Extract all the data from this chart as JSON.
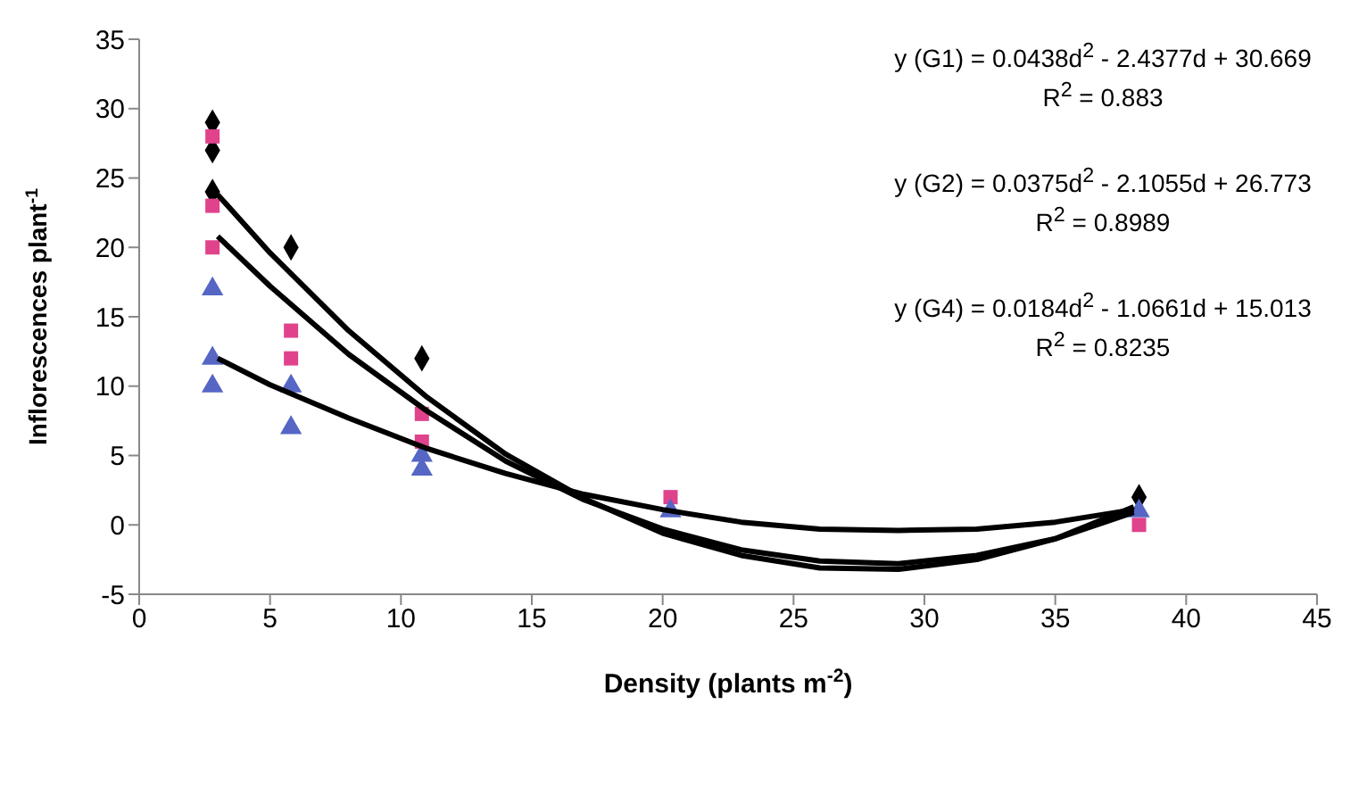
{
  "chart_data": {
    "type": "scatter",
    "xlabel": "Density (plants m$^{-2}$)",
    "ylabel": "Inflorescences plant$^{-1}$",
    "xlim": [
      0,
      45
    ],
    "xticks": [
      0,
      5,
      10,
      15,
      20,
      25,
      30,
      35,
      40,
      45
    ],
    "ylim": [
      -5,
      35
    ],
    "yticks": [
      -5,
      0,
      5,
      10,
      15,
      20,
      25,
      30,
      35
    ],
    "grid": false,
    "legend": false,
    "annotations": [
      "y (G1) = 0.0438d$^{2}$ - 2.4377d + 30.669",
      "R$^{2}$ = 0.883",
      "y (G2) = 0.0375d$^{2}$ - 2.1055d + 26.773",
      "R$^{2}$ = 0.8989",
      "y (G4) = 0.0184d$^{2}$ - 1.0661d + 15.013",
      "R$^{2}$ = 0.8235"
    ],
    "series": [
      {
        "type": "scatter",
        "marker": "diamond",
        "color": "#000000",
        "x": [
          2.8,
          2.8,
          2.8,
          5.8,
          10.8,
          38.2
        ],
        "values": [
          29,
          27,
          24,
          20,
          12,
          2
        ]
      },
      {
        "type": "scatter",
        "marker": "square",
        "color": "#e0438c",
        "x": [
          2.8,
          2.8,
          2.8,
          5.8,
          5.8,
          10.8,
          10.8,
          20.3,
          38.2
        ],
        "values": [
          28,
          23,
          20,
          14,
          12,
          8,
          6,
          2,
          0
        ]
      },
      {
        "type": "scatter",
        "marker": "triangle",
        "color": "#5566c4",
        "x": [
          2.8,
          2.8,
          2.8,
          5.8,
          5.8,
          10.8,
          10.8,
          20.3,
          38.2
        ],
        "values": [
          17,
          12,
          10,
          10,
          7,
          5,
          4,
          1,
          1
        ]
      },
      {
        "type": "line",
        "marker": "none",
        "color": "#000000",
        "x": [
          3,
          5,
          8,
          11,
          14,
          17,
          20,
          23,
          26,
          29,
          32,
          35,
          38
        ],
        "values": [
          23.8,
          19.6,
          14,
          9.2,
          5.1,
          1.9,
          -0.6,
          -2.2,
          -3.1,
          -3.2,
          -2.5,
          -1,
          1.3
        ]
      },
      {
        "type": "line",
        "marker": "none",
        "color": "#000000",
        "x": [
          3,
          5,
          8,
          11,
          14,
          17,
          20,
          23,
          26,
          29,
          32,
          35,
          38
        ],
        "values": [
          20.8,
          17.2,
          12.3,
          8.2,
          4.6,
          1.8,
          -0.3,
          -1.8,
          -2.6,
          -2.8,
          -2.2,
          -1,
          0.9
        ]
      },
      {
        "type": "line",
        "marker": "none",
        "color": "#000000",
        "x": [
          3,
          5,
          8,
          11,
          14,
          17,
          20,
          23,
          26,
          29,
          32,
          35,
          38
        ],
        "values": [
          12,
          10.1,
          7.7,
          5.5,
          3.7,
          2.2,
          1.1,
          0.2,
          -0.3,
          -0.4,
          -0.3,
          0.2,
          1.1
        ]
      }
    ]
  }
}
